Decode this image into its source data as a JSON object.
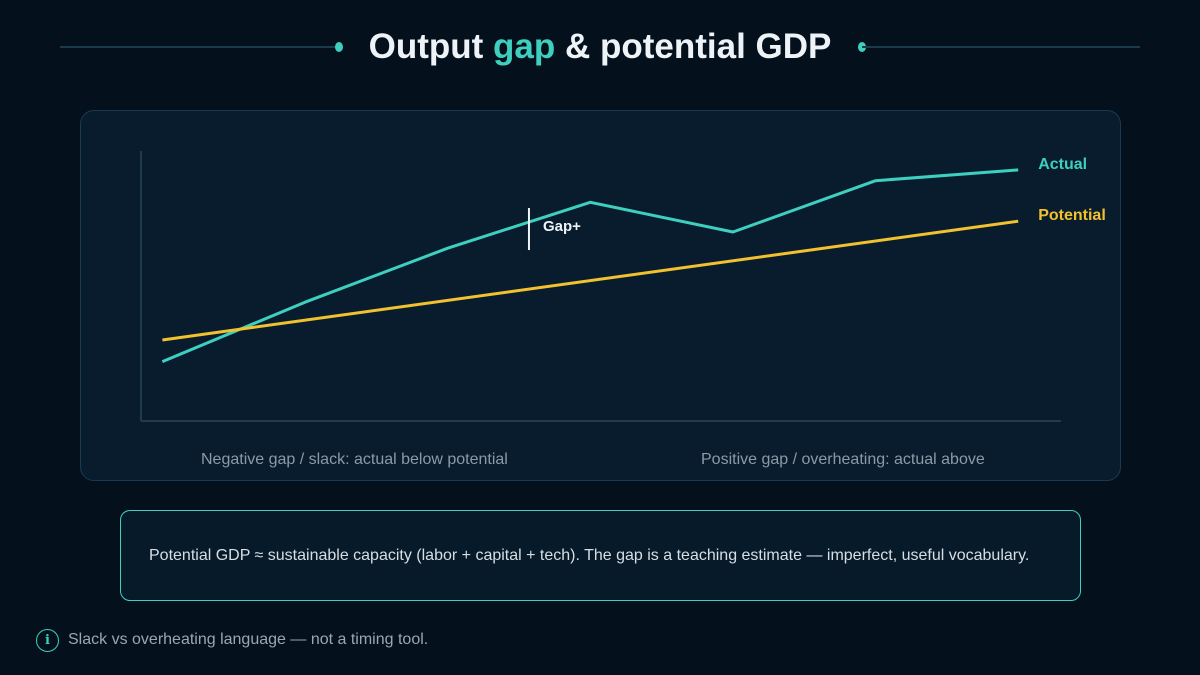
{
  "title": {
    "part1": "Output ",
    "accent": "gap",
    "part2": " & potential GDP"
  },
  "colors": {
    "background": "#04111d",
    "panel": "#081c2e",
    "accent": "#3ecfbf",
    "actual": "#3ecfbf",
    "potential": "#f2c12e",
    "text": "#eef3f7"
  },
  "chart_data": {
    "type": "line",
    "title": "",
    "xlabel": "",
    "ylabel": "",
    "x": [
      0,
      1,
      2,
      3,
      4,
      5,
      6
    ],
    "xlim": [
      -0.15,
      6.3
    ],
    "ylim": [
      0,
      100
    ],
    "grid": false,
    "series": [
      {
        "name": "Actual",
        "color": "#3ecfbf",
        "values": [
          22,
          44,
          64,
          81,
          70,
          89,
          93
        ]
      },
      {
        "name": "Potential",
        "color": "#f2c12e",
        "points": [
          [
            0,
            30
          ],
          [
            6,
            74
          ]
        ]
      }
    ],
    "annotations": [
      {
        "text": "Gap+",
        "x": 2.57
      }
    ],
    "legend": "right-inline"
  },
  "regions": {
    "negative": "Negative gap / slack: actual below potential",
    "positive": "Positive gap / overheating: actual above"
  },
  "note": "Potential GDP ≈ sustainable capacity (labor + capital + tech). The gap is a teaching estimate — imperfect, useful vocabulary.",
  "footer": {
    "icon": "info-icon",
    "text": "Slack vs overheating language — not a timing tool."
  }
}
